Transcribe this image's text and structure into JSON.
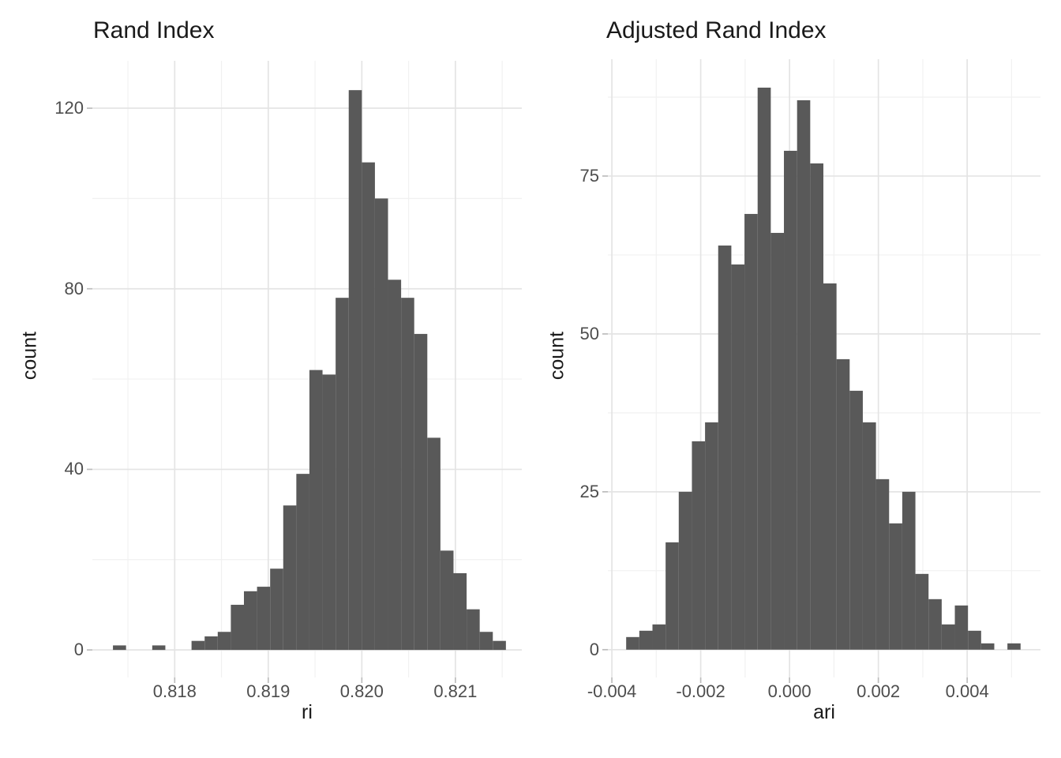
{
  "colors": {
    "bar": "#595959",
    "grid_major": "#e4e4e4",
    "grid_minor": "#f1f1f1",
    "tick_mark": "#bdbdbd",
    "axis_text": "#4d4d4d",
    "title_text": "#1a1a1a",
    "background": "#ffffff"
  },
  "figures": [
    {
      "title": "Rand Index",
      "xlabel": "ri",
      "ylabel": "count",
      "chart_data": {
        "type": "bar",
        "subtype": "histogram",
        "title": "Rand Index",
        "xlabel": "ri",
        "ylabel": "count",
        "grid": true,
        "legend": false,
        "xlim": [
          0.81712,
          0.82171
        ],
        "ylim": [
          -6.1,
          130.5
        ],
        "bin_width": 0.00014,
        "bin_centers": [
          0.81741,
          0.81755,
          0.81769,
          0.81783,
          0.81797,
          0.81811,
          0.81825,
          0.81839,
          0.81853,
          0.81867,
          0.81881,
          0.81895,
          0.81909,
          0.81923,
          0.81937,
          0.81951,
          0.81965,
          0.81979,
          0.81993,
          0.82007,
          0.82021,
          0.82035,
          0.82049,
          0.82063,
          0.82077,
          0.82091,
          0.82105,
          0.82119,
          0.82133,
          0.82147
        ],
        "counts": [
          1,
          0,
          0,
          1,
          0,
          0,
          2,
          3,
          4,
          10,
          13,
          14,
          18,
          32,
          39,
          62,
          61,
          78,
          124,
          108,
          100,
          82,
          78,
          70,
          47,
          22,
          17,
          9,
          4,
          2
        ],
        "x_ticks": [
          {
            "value": 0.818,
            "label": "0.818"
          },
          {
            "value": 0.819,
            "label": "0.819"
          },
          {
            "value": 0.82,
            "label": "0.820"
          },
          {
            "value": 0.821,
            "label": "0.821"
          }
        ],
        "y_ticks": [
          {
            "value": 0,
            "label": "0"
          },
          {
            "value": 40,
            "label": "40"
          },
          {
            "value": 80,
            "label": "80"
          },
          {
            "value": 120,
            "label": "120"
          }
        ],
        "x_minor": [
          0.8175,
          0.8185,
          0.8195,
          0.8205,
          0.8215
        ],
        "y_minor": [
          20,
          60,
          100
        ]
      }
    },
    {
      "title": "Adjusted Rand Index",
      "xlabel": "ari",
      "ylabel": "count",
      "chart_data": {
        "type": "bar",
        "subtype": "histogram",
        "title": "Adjusted Rand Index",
        "xlabel": "ari",
        "ylabel": "count",
        "grid": true,
        "legend": false,
        "xlim": [
          -0.00409,
          0.00565
        ],
        "ylim": [
          -4.4,
          93.5
        ],
        "bin_width": 0.000296,
        "bin_centers": [
          -0.00353,
          -0.003234,
          -0.002938,
          -0.002642,
          -0.002346,
          -0.00205,
          -0.001754,
          -0.001458,
          -0.001162,
          -0.000866,
          -0.00057,
          -0.000274,
          2.2e-05,
          0.000318,
          0.000614,
          0.00091,
          0.001206,
          0.001502,
          0.001798,
          0.002094,
          0.00239,
          0.002686,
          0.002982,
          0.003278,
          0.003574,
          0.00387,
          0.004166,
          0.004462,
          0.004758,
          0.005054
        ],
        "counts": [
          2,
          3,
          4,
          17,
          25,
          33,
          36,
          64,
          61,
          69,
          89,
          66,
          79,
          87,
          77,
          58,
          46,
          41,
          36,
          27,
          20,
          25,
          12,
          8,
          4,
          7,
          3,
          1,
          0,
          1
        ],
        "x_ticks": [
          {
            "value": -0.004,
            "label": "-0.004"
          },
          {
            "value": -0.002,
            "label": "-0.002"
          },
          {
            "value": 0.0,
            "label": "0.000"
          },
          {
            "value": 0.002,
            "label": "0.002"
          },
          {
            "value": 0.004,
            "label": "0.004"
          }
        ],
        "y_ticks": [
          {
            "value": 0,
            "label": "0"
          },
          {
            "value": 25,
            "label": "25"
          },
          {
            "value": 50,
            "label": "50"
          },
          {
            "value": 75,
            "label": "75"
          }
        ],
        "x_minor": [
          -0.003,
          -0.001,
          0.001,
          0.003,
          0.005
        ],
        "y_minor": [
          12.5,
          37.5,
          62.5,
          87.5
        ]
      }
    }
  ]
}
